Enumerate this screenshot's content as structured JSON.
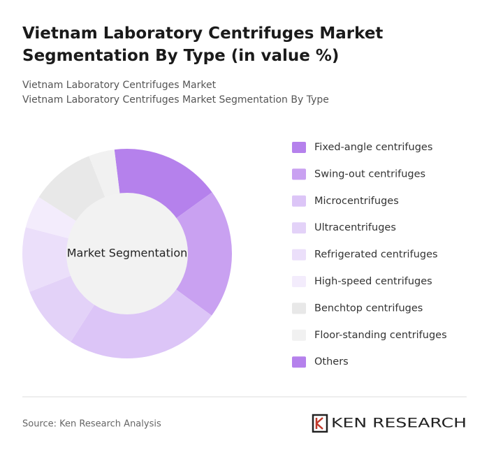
{
  "chart_data": {
    "type": "donut",
    "title": "Vietnam Laboratory Centrifuges Market Segmentation By Type (in value %)",
    "subtitle": [
      "Vietnam Laboratory Centrifuges Market",
      "Vietnam Laboratory Centrifuges Market Segmentation By Type"
    ],
    "center_label": "Market Segmentation",
    "categories": [
      "Fixed-angle centrifuges",
      "Swing-out centrifuges",
      "Microcentrifuges",
      "Ultracentrifuges",
      "Refrigerated centrifuges",
      "High-speed centrifuges",
      "Benchtop centrifuges",
      "Floor-standing centrifuges",
      "Others"
    ],
    "values": [
      17,
      20,
      24,
      10,
      10,
      5,
      10,
      4,
      0
    ],
    "colors": [
      "#b581ec",
      "#c9a1f1",
      "#dcc5f7",
      "#e3d2f8",
      "#ebdffa",
      "#f3ecfc",
      "#e8e8e8",
      "#f1f1f1",
      "#b581ec"
    ],
    "source": "Source: Ken Research Analysis",
    "brand": "KEN RESEARCH"
  }
}
